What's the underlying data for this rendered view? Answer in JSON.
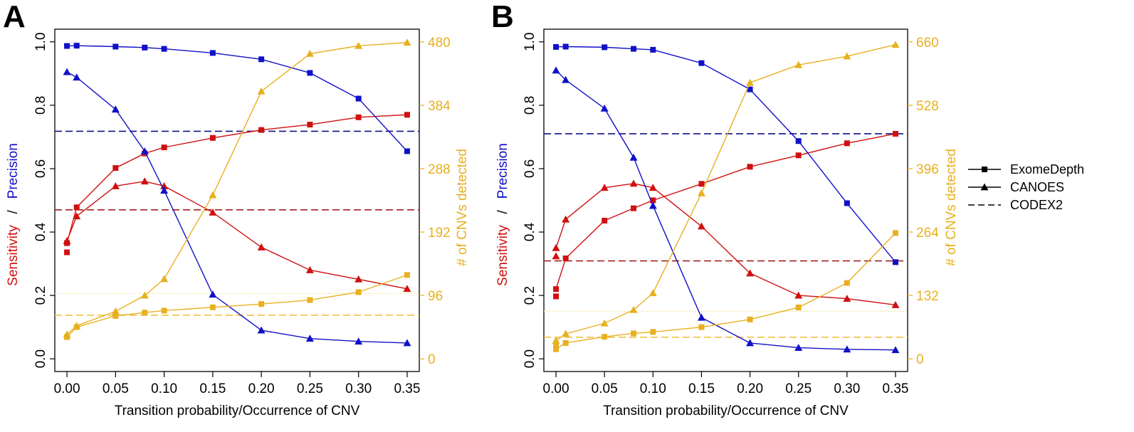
{
  "colors": {
    "sensitivity": "#d01010",
    "precision": "#1010c8",
    "cnv": "#e8b020",
    "codex2_sens": "#a02020",
    "codex2_prec": "#101088",
    "codex2_cnv_line": "#f0c040",
    "codex2_cnv_dotted": "#f3e5a0",
    "axis": "#000000"
  },
  "legend": {
    "items": [
      {
        "label": "ExomeDepth",
        "marker": "square",
        "line": "solid"
      },
      {
        "label": "CANOES",
        "marker": "triangle",
        "line": "solid"
      },
      {
        "label": "CODEX2",
        "marker": "none",
        "line": "dashed"
      }
    ]
  },
  "chart_data": [
    {
      "type": "line",
      "panel": "A",
      "xlabel": "Transition probability/Occurrence of CNV",
      "ylabel_left_parts": [
        "Sensitivity",
        "/",
        "Precision"
      ],
      "ylabel_right": "# of CNVs detected",
      "x": [
        0.0,
        0.01,
        0.05,
        0.08,
        0.1,
        0.15,
        0.2,
        0.25,
        0.3,
        0.35
      ],
      "x_ticks": [
        0.0,
        0.05,
        0.1,
        0.15,
        0.2,
        0.25,
        0.3,
        0.35
      ],
      "x_tick_labels": [
        "0.00",
        "0.05",
        "0.10",
        "0.15",
        "0.20",
        "0.25",
        "0.30",
        "0.35"
      ],
      "xlim": [
        -0.0125,
        0.3625
      ],
      "ylim_left": [
        -0.04,
        1.04
      ],
      "y_ticks_left": [
        0.0,
        0.2,
        0.4,
        0.6,
        0.8,
        1.0
      ],
      "y_tick_labels_left": [
        "0.0",
        "0.2",
        "0.4",
        "0.6",
        "0.8",
        "1.0"
      ],
      "ylim_right": [
        -19.2,
        499.2
      ],
      "y_ticks_right": [
        0,
        96,
        192,
        288,
        384,
        480
      ],
      "y_tick_labels_right": [
        "0",
        "96",
        "192",
        "288",
        "384",
        "480"
      ],
      "series": [
        {
          "name": "ExomeDepth Sensitivity",
          "axis": "left",
          "color": "sensitivity",
          "marker": "square",
          "values": [
            0.365,
            0.478,
            0.602,
            0.648,
            0.667,
            0.697,
            0.722,
            0.739,
            0.762,
            0.77
          ],
          "extra_points": [
            {
              "x": 0.0,
              "y": 0.336
            }
          ]
        },
        {
          "name": "CANOES Sensitivity",
          "axis": "left",
          "color": "sensitivity",
          "marker": "triangle",
          "values": [
            0.372,
            0.45,
            0.545,
            0.56,
            0.545,
            0.462,
            0.352,
            0.28,
            0.251,
            0.221
          ]
        },
        {
          "name": "ExomeDepth Precision",
          "axis": "left",
          "color": "precision",
          "marker": "square",
          "values": [
            0.987,
            0.988,
            0.985,
            0.982,
            0.978,
            0.965,
            0.945,
            0.902,
            0.821,
            0.655
          ]
        },
        {
          "name": "CANOES Precision",
          "axis": "left",
          "color": "precision",
          "marker": "triangle",
          "values": [
            0.905,
            0.888,
            0.787,
            0.655,
            0.531,
            0.203,
            0.09,
            0.064,
            0.055,
            0.05
          ]
        },
        {
          "name": "ExomeDepth # of CNVs",
          "axis": "right",
          "color": "cnv",
          "marker": "square",
          "values": [
            33,
            48,
            65,
            70,
            73,
            78,
            83,
            89,
            101,
            127
          ]
        },
        {
          "name": "CANOES # of CNVs",
          "axis": "right",
          "color": "cnv",
          "marker": "triangle",
          "values": [
            37,
            50,
            72,
            96,
            121,
            248,
            405,
            462,
            474,
            479
          ]
        }
      ],
      "hlines": [
        {
          "name": "CODEX2 Precision",
          "axis": "left",
          "y": 0.718,
          "color": "codex2_prec",
          "style": "dashed"
        },
        {
          "name": "CODEX2 Sensitivity",
          "axis": "left",
          "y": 0.47,
          "color": "codex2_sens",
          "style": "dashed"
        },
        {
          "name": "CODEX2 # of CNVs (dotted)",
          "axis": "right",
          "y": 99,
          "color": "codex2_cnv_dotted",
          "style": "dotted"
        },
        {
          "name": "CODEX2 # of CNVs",
          "axis": "right",
          "y": 66,
          "color": "codex2_cnv_line",
          "style": "dashed"
        }
      ]
    },
    {
      "type": "line",
      "panel": "B",
      "xlabel": "Transition probability/Occurrence of CNV",
      "ylabel_left_parts": [
        "Sensitivity",
        "/",
        "Precision"
      ],
      "ylabel_right": "# of CNVs detected",
      "x": [
        0.0,
        0.01,
        0.05,
        0.08,
        0.1,
        0.15,
        0.2,
        0.25,
        0.3,
        0.35
      ],
      "x_ticks": [
        0.0,
        0.05,
        0.1,
        0.15,
        0.2,
        0.25,
        0.3,
        0.35
      ],
      "x_tick_labels": [
        "0.00",
        "0.05",
        "0.10",
        "0.15",
        "0.20",
        "0.25",
        "0.30",
        "0.35"
      ],
      "xlim": [
        -0.0125,
        0.3625
      ],
      "ylim_left": [
        -0.04,
        1.04
      ],
      "y_ticks_left": [
        0.0,
        0.2,
        0.4,
        0.6,
        0.8,
        1.0
      ],
      "y_tick_labels_left": [
        "0.0",
        "0.2",
        "0.4",
        "0.6",
        "0.8",
        "1.0"
      ],
      "ylim_right": [
        -26.4,
        686.4
      ],
      "y_ticks_right": [
        0,
        132,
        264,
        396,
        528,
        660
      ],
      "y_tick_labels_right": [
        "0",
        "132",
        "264",
        "396",
        "528",
        "660"
      ],
      "series": [
        {
          "name": "ExomeDepth Sensitivity",
          "axis": "left",
          "color": "sensitivity",
          "marker": "square",
          "values": [
            0.22,
            0.317,
            0.436,
            0.475,
            0.5,
            0.552,
            0.606,
            0.642,
            0.68,
            0.71
          ],
          "extra_points": [
            {
              "x": 0.0,
              "y": 0.197
            }
          ]
        },
        {
          "name": "CANOES Sensitivity",
          "axis": "left",
          "color": "sensitivity",
          "marker": "triangle",
          "values": [
            0.35,
            0.44,
            0.54,
            0.553,
            0.54,
            0.418,
            0.27,
            0.2,
            0.19,
            0.17
          ],
          "extra_points": [
            {
              "x": 0.0,
              "y": 0.324
            }
          ]
        },
        {
          "name": "ExomeDepth Precision",
          "axis": "left",
          "color": "precision",
          "marker": "square",
          "values": [
            0.984,
            0.985,
            0.983,
            0.978,
            0.975,
            0.933,
            0.85,
            0.687,
            0.491,
            0.305
          ]
        },
        {
          "name": "CANOES Precision",
          "axis": "left",
          "color": "precision",
          "marker": "triangle",
          "values": [
            0.91,
            0.88,
            0.79,
            0.635,
            0.483,
            0.13,
            0.05,
            0.035,
            0.03,
            0.028
          ]
        },
        {
          "name": "ExomeDepth # of CNVs",
          "axis": "right",
          "color": "cnv",
          "marker": "square",
          "values": [
            20,
            33,
            46,
            53,
            56,
            66,
            82,
            107,
            158,
            262
          ],
          "extra_points": [
            {
              "x": 0.0,
              "y": 27
            }
          ]
        },
        {
          "name": "CANOES # of CNVs",
          "axis": "right",
          "color": "cnv",
          "marker": "triangle",
          "values": [
            38,
            52,
            74,
            102,
            137,
            345,
            575,
            612,
            630,
            654
          ]
        }
      ],
      "hlines": [
        {
          "name": "CODEX2 Precision",
          "axis": "left",
          "y": 0.71,
          "color": "codex2_prec",
          "style": "dashed"
        },
        {
          "name": "CODEX2 Sensitivity",
          "axis": "left",
          "y": 0.309,
          "color": "codex2_sens",
          "style": "dashed"
        },
        {
          "name": "CODEX2 # of CNVs (dotted)",
          "axis": "right",
          "y": 99,
          "color": "codex2_cnv_dotted",
          "style": "dotted"
        },
        {
          "name": "CODEX2 # of CNVs",
          "axis": "right",
          "y": 45,
          "color": "codex2_cnv_line",
          "style": "dashed"
        }
      ]
    }
  ]
}
